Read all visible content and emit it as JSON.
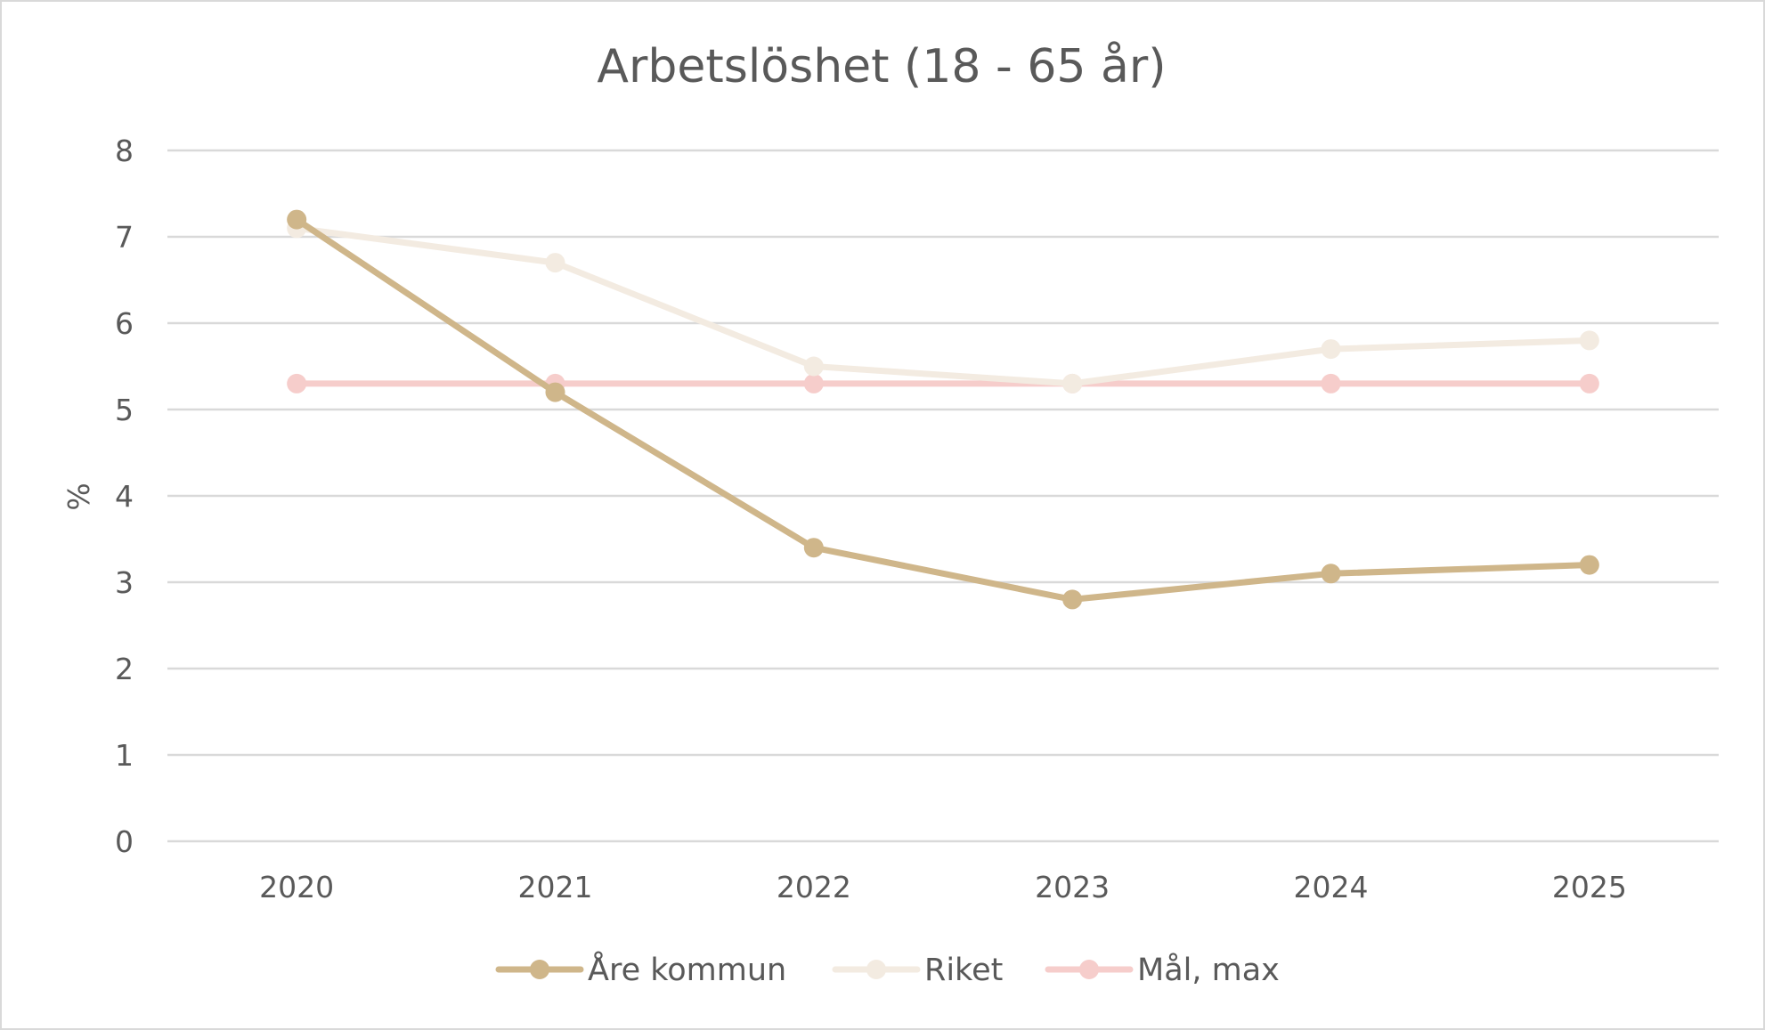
{
  "chart_data": {
    "type": "line",
    "title": "Arbetslöshet (18 - 65 år)",
    "xlabel": "",
    "ylabel": "%",
    "categories": [
      "2020",
      "2021",
      "2022",
      "2023",
      "2024",
      "2025"
    ],
    "ylim": [
      0,
      8
    ],
    "yticks": [
      "0",
      "1",
      "2",
      "3",
      "4",
      "5",
      "6",
      "7",
      "8"
    ],
    "grid": true,
    "legend_position": "bottom",
    "series": [
      {
        "name": "Åre kommun",
        "values": [
          7.2,
          5.2,
          3.4,
          2.8,
          3.1,
          3.2
        ],
        "color": "#cfb68a"
      },
      {
        "name": "Riket",
        "values": [
          7.1,
          6.7,
          5.5,
          5.3,
          5.7,
          5.8
        ],
        "color": "#f3ebe1"
      },
      {
        "name": "Mål, max",
        "values": [
          5.3,
          5.3,
          5.3,
          5.3,
          5.3,
          5.3
        ],
        "color": "#f6cdcb"
      }
    ]
  }
}
